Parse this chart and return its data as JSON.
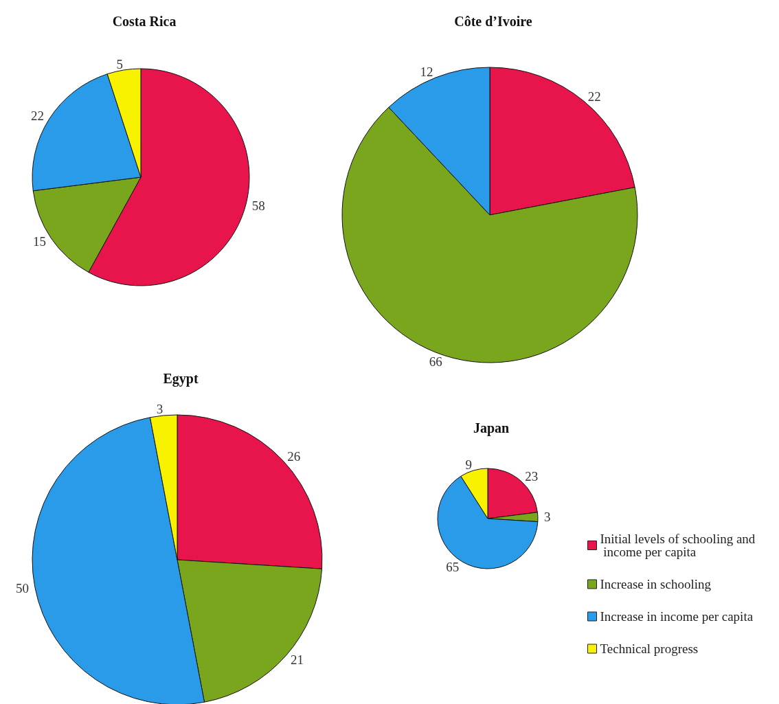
{
  "chart_data": [
    {
      "type": "pie",
      "title": "Costa Rica",
      "categories": [
        null,
        null,
        null,
        null
      ],
      "values": [
        58,
        15,
        22,
        5
      ],
      "colors": [
        "#e8144c",
        "#7aa61e",
        "#2a9be8",
        "#f8f200"
      ],
      "data_labels": true
    },
    {
      "type": "pie",
      "title": "Côte d’Ivoire",
      "categories": [
        null,
        null,
        null
      ],
      "values": [
        22,
        66,
        12
      ],
      "colors": [
        "#e8144c",
        "#7aa61e",
        "#2a9be8"
      ],
      "data_labels": true
    },
    {
      "type": "pie",
      "title": "Egypt",
      "categories": [
        null,
        null,
        null,
        null
      ],
      "values": [
        26,
        21,
        50,
        3
      ],
      "colors": [
        "#e8144c",
        "#7aa61e",
        "#2a9be8",
        "#f8f200"
      ],
      "data_labels": true
    },
    {
      "type": "pie",
      "title": "Japan",
      "categories": [
        "Initial levels of schooling and income per capita",
        "Increase in schooling",
        "Increase in income per capita",
        "Technical progress"
      ],
      "values": [
        23,
        3,
        65,
        9
      ],
      "colors": [
        "#e8144c",
        "#7aa61e",
        "#2a9be8",
        "#f8f200"
      ],
      "data_labels": true,
      "legend": "bottom right"
    }
  ]
}
